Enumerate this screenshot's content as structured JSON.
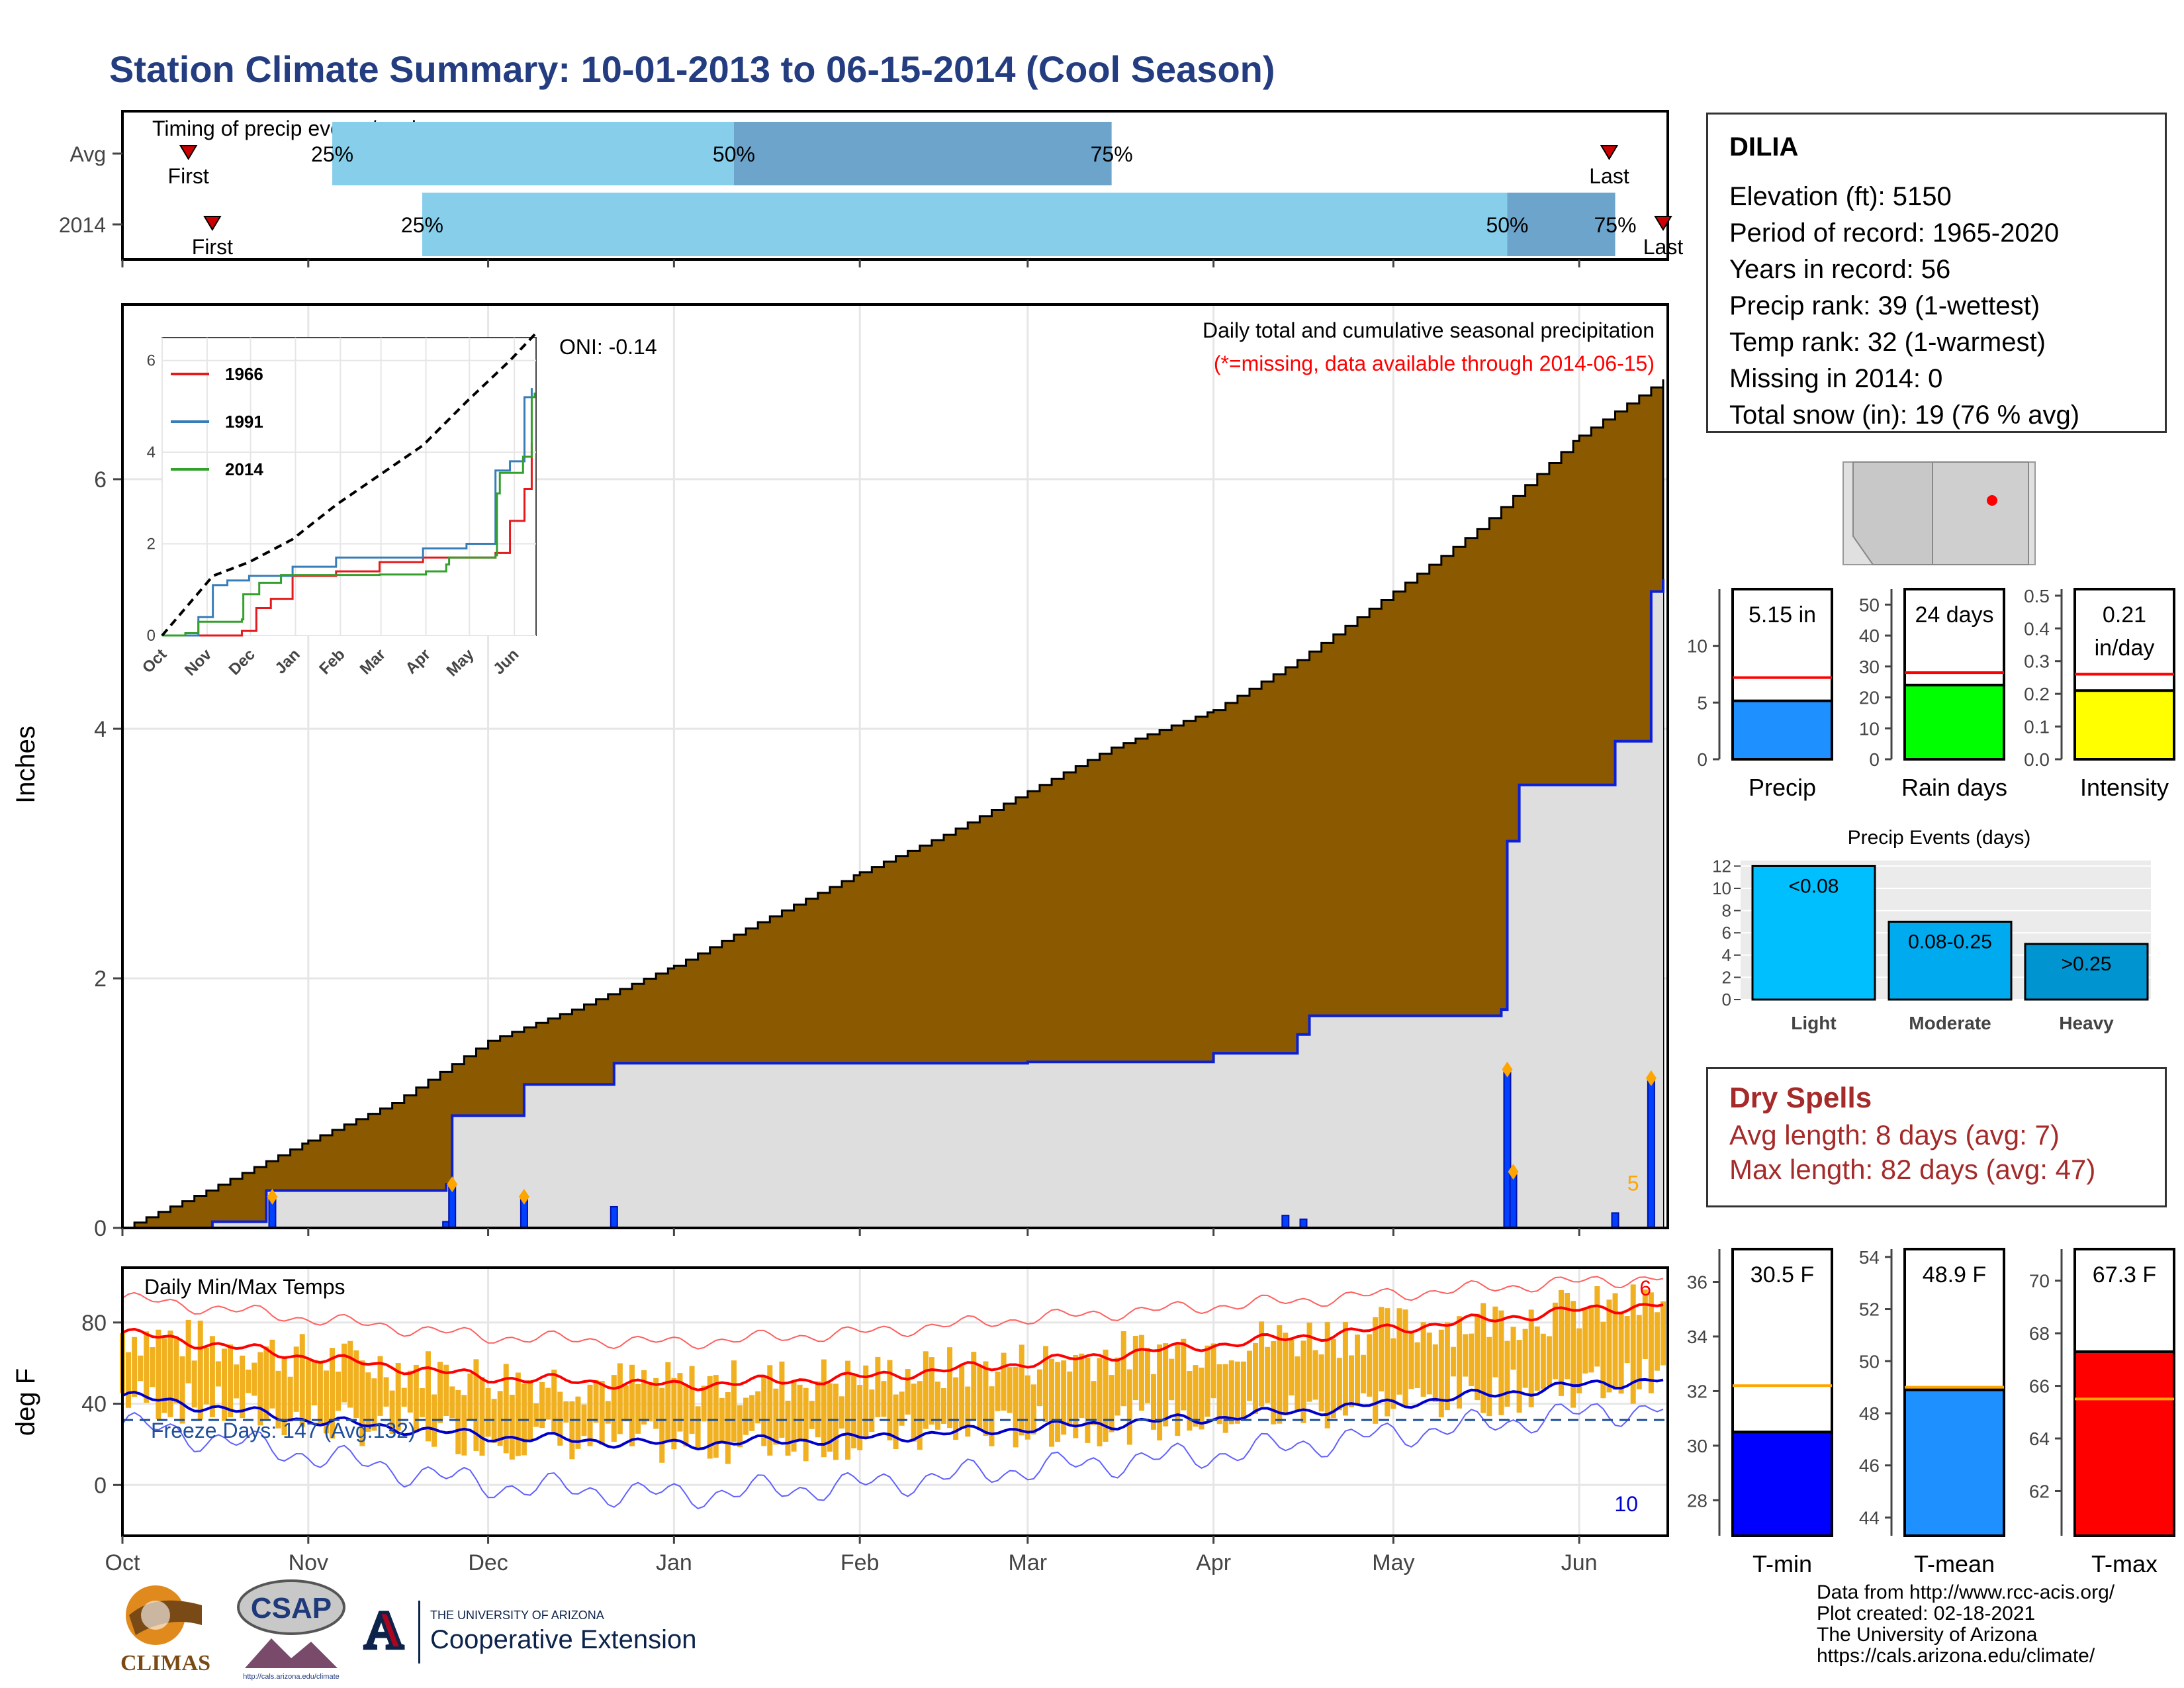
{
  "title": "Station Climate Summary: 10-01-2013 to 06-15-2014 (Cool Season)",
  "station": {
    "name": "DILIA",
    "lines": [
      "Elevation (ft): 5150",
      "Period of record: 1965-2020",
      "Years in record: 56",
      "Precip rank: 39 (1-wettest)",
      "Temp rank: 32 (1-warmest)",
      "Missing in 2014: 0",
      "Total snow (in): 19 (76 % avg)"
    ]
  },
  "dry_spells": {
    "title": "Dry Spells",
    "avg": "Avg length: 8 days (avg: 7)",
    "max": "Max length: 82 days (avg: 47)"
  },
  "footer": [
    "Data from http://www.rcc-acis.org/",
    "Plot created: 02-18-2021",
    "The University of Arizona",
    "https://cals.arizona.edu/climate/"
  ],
  "logos": {
    "climas": "CLIMAS",
    "csap": "CSAP",
    "csap_url": "http://cals.arizona.edu/climate",
    "ua_line1": "THE UNIVERSITY OF ARIZONA",
    "ua_line2": "Cooperative Extension",
    "ua_letter": "A"
  },
  "colors": {
    "title": "#233d80",
    "cumulative_avg_fill": "#8b5a00",
    "seasonal_fill": "#dedede",
    "precip_line": "#0a1fd6",
    "bar_light": "#87ceeb",
    "bar_dark": "#6ca4cc",
    "tmax_avg": "#ff0000",
    "tmin_avg": "#0000cd",
    "daily_range": "#f0b020",
    "precip_bar": "#1e90ff",
    "raindays_bar": "#00ff00",
    "intensity_bar": "#ffff00",
    "events_light": "#00bfff",
    "events_moderate": "#00aaee",
    "events_heavy": "#0095d0",
    "tmin_bar": "#0000ff",
    "tmean_bar": "#1e90ff",
    "tmax_bar": "#ff0000",
    "dry_spells": "#a52a2a"
  },
  "chart_data": [
    {
      "type": "bar",
      "name": "timing",
      "title": "Timing of precip events/totals",
      "categories": [
        "Avg",
        "2014"
      ],
      "x_ticks": [
        "Oct",
        "Nov",
        "Dec",
        "Jan",
        "Feb",
        "Mar",
        "Apr",
        "May",
        "Jun"
      ],
      "rows": [
        {
          "label": "Avg",
          "first": "2013-10-12",
          "p25": "2013-11-05",
          "p50": "2014-01-11",
          "p75": "2014-03-15",
          "last": "2014-06-06",
          "first_label": "First",
          "last_label": "Last",
          "p25_label": "25%",
          "p50_label": "50%",
          "p75_label": "75%"
        },
        {
          "label": "2014",
          "first": "2013-10-16",
          "p25": "2013-11-20",
          "p50": "2014-05-20",
          "p75": "2014-06-07",
          "last": "2014-06-15",
          "first_label": "First",
          "last_label": "Last",
          "p25_label": "25%",
          "p50_label": "50%",
          "p75_label": "75%"
        }
      ]
    },
    {
      "type": "area",
      "name": "precipitation",
      "title": "Daily total and cumulative seasonal precipitation",
      "subtitle": "(*=missing, data available through 2014-06-15)",
      "oni": "ONI: -0.14",
      "ylabel": "Inches",
      "ylim": [
        0,
        7.4
      ],
      "yticks": [
        0,
        2,
        4,
        6
      ],
      "x_ticks": [
        "Oct",
        "Nov",
        "Dec",
        "Jan",
        "Feb",
        "Mar",
        "Apr",
        "May",
        "Jun"
      ],
      "annotation": "5",
      "avg_cumulative": [
        {
          "date": "2013-10-01",
          "value": 0.0
        },
        {
          "date": "2013-10-15",
          "value": 0.3
        },
        {
          "date": "2013-11-01",
          "value": 0.7
        },
        {
          "date": "2013-11-15",
          "value": 1.0
        },
        {
          "date": "2013-12-01",
          "value": 1.5
        },
        {
          "date": "2013-12-15",
          "value": 1.75
        },
        {
          "date": "2014-01-01",
          "value": 2.1
        },
        {
          "date": "2014-01-15",
          "value": 2.45
        },
        {
          "date": "2014-02-01",
          "value": 2.85
        },
        {
          "date": "2014-02-15",
          "value": 3.15
        },
        {
          "date": "2014-03-01",
          "value": 3.5
        },
        {
          "date": "2014-03-15",
          "value": 3.85
        },
        {
          "date": "2014-04-01",
          "value": 4.15
        },
        {
          "date": "2014-04-15",
          "value": 4.55
        },
        {
          "date": "2014-05-01",
          "value": 5.1
        },
        {
          "date": "2014-05-15",
          "value": 5.6
        },
        {
          "date": "2014-06-01",
          "value": 6.35
        },
        {
          "date": "2014-06-15",
          "value": 6.8
        }
      ],
      "cumulative_2014": [
        {
          "date": "2013-10-01",
          "value": 0.0
        },
        {
          "date": "2013-10-16",
          "value": 0.05
        },
        {
          "date": "2013-10-25",
          "value": 0.3
        },
        {
          "date": "2013-11-24",
          "value": 0.35
        },
        {
          "date": "2013-11-25",
          "value": 0.9
        },
        {
          "date": "2013-12-07",
          "value": 1.15
        },
        {
          "date": "2013-12-22",
          "value": 1.32
        },
        {
          "date": "2014-03-01",
          "value": 1.33
        },
        {
          "date": "2014-04-01",
          "value": 1.4
        },
        {
          "date": "2014-04-15",
          "value": 1.55
        },
        {
          "date": "2014-04-17",
          "value": 1.7
        },
        {
          "date": "2014-05-19",
          "value": 1.75
        },
        {
          "date": "2014-05-20",
          "value": 3.1
        },
        {
          "date": "2014-05-22",
          "value": 3.55
        },
        {
          "date": "2014-06-07",
          "value": 3.9
        },
        {
          "date": "2014-06-13",
          "value": 5.1
        },
        {
          "date": "2014-06-15",
          "value": 5.2
        }
      ],
      "daily": [
        {
          "date": "2013-10-26",
          "value": 0.25
        },
        {
          "date": "2013-11-24",
          "value": 0.05
        },
        {
          "date": "2013-11-25",
          "value": 0.35
        },
        {
          "date": "2013-12-07",
          "value": 0.25
        },
        {
          "date": "2013-12-22",
          "value": 0.17
        },
        {
          "date": "2014-04-13",
          "value": 0.1
        },
        {
          "date": "2014-04-16",
          "value": 0.07
        },
        {
          "date": "2014-05-20",
          "value": 1.27
        },
        {
          "date": "2014-05-21",
          "value": 0.45
        },
        {
          "date": "2014-06-07",
          "value": 0.12
        },
        {
          "date": "2014-06-13",
          "value": 1.2
        }
      ]
    },
    {
      "type": "line",
      "name": "inset_cumulative",
      "x_ticks": [
        "Oct",
        "Nov",
        "Dec",
        "Jan",
        "Feb",
        "Mar",
        "Apr",
        "May",
        "Jun"
      ],
      "yticks": [
        0,
        2,
        4,
        6
      ],
      "ylim": [
        0,
        6.5
      ],
      "series": [
        {
          "name": "1966",
          "color": "#e41a1c",
          "points": [
            [
              0,
              0
            ],
            [
              55,
              0.1
            ],
            [
              65,
              0.6
            ],
            [
              75,
              0.8
            ],
            [
              90,
              1.3
            ],
            [
              120,
              1.4
            ],
            [
              150,
              1.6
            ],
            [
              180,
              1.7
            ],
            [
              210,
              1.7
            ],
            [
              230,
              1.8
            ],
            [
              240,
              2.5
            ],
            [
              250,
              3.2
            ],
            [
              255,
              4.2
            ]
          ]
        },
        {
          "name": "1991",
          "color": "#377eb8",
          "points": [
            [
              0,
              0
            ],
            [
              25,
              0.4
            ],
            [
              35,
              1.1
            ],
            [
              45,
              1.2
            ],
            [
              60,
              1.3
            ],
            [
              90,
              1.5
            ],
            [
              120,
              1.7
            ],
            [
              150,
              1.7
            ],
            [
              180,
              1.9
            ],
            [
              210,
              2.0
            ],
            [
              225,
              2.0
            ],
            [
              230,
              3.6
            ],
            [
              240,
              3.8
            ],
            [
              250,
              5.2
            ],
            [
              255,
              5.4
            ]
          ]
        },
        {
          "name": "2014",
          "color": "#33a02c",
          "points": [
            [
              0,
              0
            ],
            [
              16,
              0.05
            ],
            [
              25,
              0.3
            ],
            [
              55,
              0.35
            ],
            [
              56,
              0.9
            ],
            [
              67,
              1.15
            ],
            [
              82,
              1.32
            ],
            [
              150,
              1.33
            ],
            [
              182,
              1.4
            ],
            [
              196,
              1.55
            ],
            [
              198,
              1.7
            ],
            [
              230,
              1.75
            ],
            [
              231,
              3.1
            ],
            [
              233,
              3.55
            ],
            [
              249,
              3.9
            ],
            [
              255,
              5.2
            ],
            [
              257,
              5.3
            ]
          ]
        },
        {
          "name": "average",
          "color": "#000000",
          "points": [
            [
              0,
              0
            ],
            [
              35,
              1.3
            ],
            [
              60,
              1.6
            ],
            [
              90,
              2.1
            ],
            [
              120,
              2.85
            ],
            [
              150,
              3.5
            ],
            [
              180,
              4.15
            ],
            [
              210,
              5.1
            ],
            [
              240,
              6.0
            ],
            [
              258,
              6.6
            ]
          ]
        }
      ]
    },
    {
      "type": "line",
      "name": "temperature",
      "title": "Daily Min/Max Temps",
      "ylabel": "deg F",
      "ylim": [
        -25,
        107
      ],
      "yticks": [
        0,
        40,
        80
      ],
      "x_ticks": [
        "Oct",
        "Nov",
        "Dec",
        "Jan",
        "Feb",
        "Mar",
        "Apr",
        "May",
        "Jun"
      ],
      "freeze_days": "Freeze Days: 147 (Avg:132)",
      "freeze_line": 32,
      "count_max": "6",
      "count_min": "10",
      "avg_tmax": [
        {
          "date": "2013-10-01",
          "value": 75
        },
        {
          "date": "2013-11-01",
          "value": 63
        },
        {
          "date": "2013-12-01",
          "value": 53
        },
        {
          "date": "2014-01-01",
          "value": 49
        },
        {
          "date": "2014-02-01",
          "value": 53
        },
        {
          "date": "2014-03-01",
          "value": 60
        },
        {
          "date": "2014-04-01",
          "value": 69
        },
        {
          "date": "2014-05-01",
          "value": 77
        },
        {
          "date": "2014-06-01",
          "value": 86
        },
        {
          "date": "2014-06-15",
          "value": 89
        }
      ],
      "avg_tmin": [
        {
          "date": "2013-10-01",
          "value": 44
        },
        {
          "date": "2013-11-01",
          "value": 32
        },
        {
          "date": "2013-12-01",
          "value": 24
        },
        {
          "date": "2014-01-01",
          "value": 20
        },
        {
          "date": "2014-02-01",
          "value": 23
        },
        {
          "date": "2014-03-01",
          "value": 28
        },
        {
          "date": "2014-04-01",
          "value": 33
        },
        {
          "date": "2014-05-01",
          "value": 40
        },
        {
          "date": "2014-06-01",
          "value": 49
        },
        {
          "date": "2014-06-15",
          "value": 52
        }
      ],
      "record_max": [
        {
          "date": "2013-10-01",
          "value": 92
        },
        {
          "date": "2013-11-01",
          "value": 82
        },
        {
          "date": "2013-12-01",
          "value": 73
        },
        {
          "date": "2014-01-01",
          "value": 70
        },
        {
          "date": "2014-02-01",
          "value": 75
        },
        {
          "date": "2014-03-01",
          "value": 82
        },
        {
          "date": "2014-04-01",
          "value": 88
        },
        {
          "date": "2014-05-01",
          "value": 94
        },
        {
          "date": "2014-06-01",
          "value": 100
        },
        {
          "date": "2014-06-15",
          "value": 102
        }
      ],
      "record_min": [
        {
          "date": "2013-10-01",
          "value": 30
        },
        {
          "date": "2013-11-01",
          "value": 15
        },
        {
          "date": "2013-12-01",
          "value": 0
        },
        {
          "date": "2014-01-01",
          "value": -5
        },
        {
          "date": "2014-02-01",
          "value": 0
        },
        {
          "date": "2014-03-01",
          "value": 8
        },
        {
          "date": "2014-04-01",
          "value": 15
        },
        {
          "date": "2014-05-01",
          "value": 25
        },
        {
          "date": "2014-06-01",
          "value": 35
        },
        {
          "date": "2014-06-15",
          "value": 38
        }
      ]
    },
    {
      "type": "bar",
      "name": "precip_total",
      "xlabel": "Precip",
      "label": "5.15 in",
      "value": 5.15,
      "avg": 7.2,
      "ylim": [
        0,
        15
      ],
      "yticks": [
        0,
        5,
        10
      ]
    },
    {
      "type": "bar",
      "name": "rain_days",
      "xlabel": "Rain days",
      "label": "24 days",
      "value": 24,
      "avg": 28,
      "ylim": [
        0,
        55
      ],
      "yticks": [
        0,
        10,
        20,
        30,
        40,
        50
      ]
    },
    {
      "type": "bar",
      "name": "intensity",
      "xlabel": "Intensity",
      "label": "0.21",
      "label2": "in/day",
      "value": 0.21,
      "avg": 0.26,
      "ylim": [
        0,
        0.52
      ],
      "yticks": [
        0.0,
        0.1,
        0.2,
        0.3,
        0.4,
        0.5
      ],
      "ytick_labels": [
        "0.0",
        "0.1",
        "0.2",
        "0.3",
        "0.4",
        "0.5"
      ]
    },
    {
      "type": "bar",
      "name": "precip_events",
      "title": "Precip Events (days)",
      "categories": [
        "Light",
        "Moderate",
        "Heavy"
      ],
      "bar_labels": [
        "<0.08",
        "0.08-0.25",
        ">0.25"
      ],
      "values": [
        12,
        7,
        5
      ],
      "ylim": [
        0,
        12.5
      ],
      "yticks": [
        0,
        2,
        4,
        6,
        8,
        10,
        12
      ]
    },
    {
      "type": "bar",
      "name": "tmin",
      "xlabel": "T-min",
      "label": "30.5 F",
      "value": 30.5,
      "avg": 32.2,
      "ylim": [
        26.7,
        37.2
      ],
      "yticks": [
        28,
        30,
        32,
        34,
        36
      ]
    },
    {
      "type": "bar",
      "name": "tmean",
      "xlabel": "T-mean",
      "label": "48.9 F",
      "value": 48.9,
      "avg": 49.0,
      "ylim": [
        43.3,
        54.3
      ],
      "yticks": [
        44,
        46,
        48,
        50,
        52,
        54
      ]
    },
    {
      "type": "bar",
      "name": "tmax",
      "xlabel": "T-max",
      "label": "67.3 F",
      "value": 67.3,
      "avg": 65.5,
      "ylim": [
        60.3,
        71.2
      ],
      "yticks": [
        62,
        64,
        66,
        68,
        70
      ]
    }
  ]
}
